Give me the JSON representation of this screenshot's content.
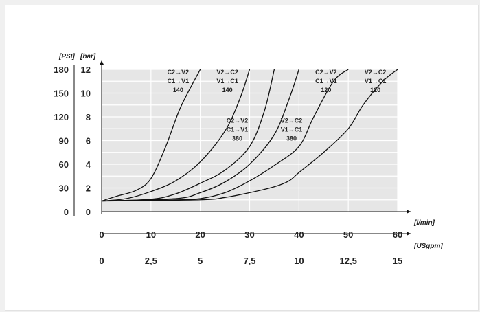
{
  "chart_data": {
    "type": "line",
    "title": "",
    "units": {
      "x_primary": "[l/min]",
      "x_secondary": "[USgpm]",
      "y_left": "[PSI]",
      "y_right": "[bar]"
    },
    "x_range": [
      0,
      60
    ],
    "y_range": [
      0,
      12
    ],
    "grid": true,
    "x_ticks": [
      "0",
      "10",
      "20",
      "30",
      "40",
      "50",
      "60"
    ],
    "x2_ticks": [
      "0",
      "2,5",
      "5",
      "7,5",
      "10",
      "12,5",
      "15"
    ],
    "y_bar_ticks": [
      "0",
      "2",
      "4",
      "6",
      "8",
      "10",
      "12"
    ],
    "y_psi_ticks": [
      "0",
      "30",
      "60",
      "90",
      "120",
      "150",
      "180"
    ],
    "series": [
      {
        "points": [
          [
            0,
            0.9
          ],
          [
            3,
            1.3
          ],
          [
            7,
            1.8
          ],
          [
            10,
            2.8
          ],
          [
            13,
            5.5
          ],
          [
            16,
            8.8
          ],
          [
            20,
            12
          ]
        ]
      },
      {
        "points": [
          [
            0,
            0.9
          ],
          [
            5,
            1.1
          ],
          [
            10,
            1.7
          ],
          [
            15,
            2.6
          ],
          [
            20,
            4.2
          ],
          [
            25,
            6.8
          ],
          [
            28,
            9.5
          ],
          [
            30,
            12
          ]
        ]
      },
      {
        "points": [
          [
            0,
            0.9
          ],
          [
            10,
            1.05
          ],
          [
            15,
            1.5
          ],
          [
            20,
            2.4
          ],
          [
            25,
            3.5
          ],
          [
            30,
            5.5
          ],
          [
            33,
            8.5
          ],
          [
            35,
            12
          ]
        ]
      },
      {
        "points": [
          [
            0,
            0.9
          ],
          [
            15,
            1.1
          ],
          [
            20,
            1.6
          ],
          [
            25,
            2.5
          ],
          [
            30,
            4.0
          ],
          [
            35,
            6.5
          ],
          [
            38,
            9.5
          ],
          [
            40,
            12
          ]
        ]
      },
      {
        "points": [
          [
            0,
            0.9
          ],
          [
            15,
            1.0
          ],
          [
            20,
            1.1
          ],
          [
            25,
            1.6
          ],
          [
            30,
            2.6
          ],
          [
            35,
            3.9
          ],
          [
            40,
            5.5
          ],
          [
            43,
            8.0
          ],
          [
            47,
            11.0
          ],
          [
            50,
            12
          ]
        ]
      },
      {
        "points": [
          [
            0,
            0.9
          ],
          [
            20,
            1.0
          ],
          [
            25,
            1.2
          ],
          [
            30,
            1.6
          ],
          [
            35,
            2.1
          ],
          [
            38,
            2.6
          ],
          [
            40,
            3.3
          ],
          [
            45,
            5.0
          ],
          [
            50,
            7.0
          ],
          [
            53,
            9.0
          ],
          [
            57,
            11.0
          ],
          [
            60,
            12
          ]
        ]
      }
    ],
    "annotations": [
      {
        "lines": [
          "C2→V2",
          "C1→V1",
          "140"
        ],
        "x": 15.5,
        "y": 11.6
      },
      {
        "lines": [
          "V2→C2",
          "V1→C1",
          "140"
        ],
        "x": 25.5,
        "y": 11.6
      },
      {
        "lines": [
          "C2→V2",
          "C1→V1",
          "380"
        ],
        "x": 27.5,
        "y": 7.5
      },
      {
        "lines": [
          "V2→C2",
          "V1→C1",
          "380"
        ],
        "x": 38.5,
        "y": 7.5
      },
      {
        "lines": [
          "C2→V2",
          "C1→V1",
          "120"
        ],
        "x": 45.5,
        "y": 11.6
      },
      {
        "lines": [
          "V2→C2",
          "V1→C1",
          "120"
        ],
        "x": 55.5,
        "y": 11.6
      }
    ]
  }
}
